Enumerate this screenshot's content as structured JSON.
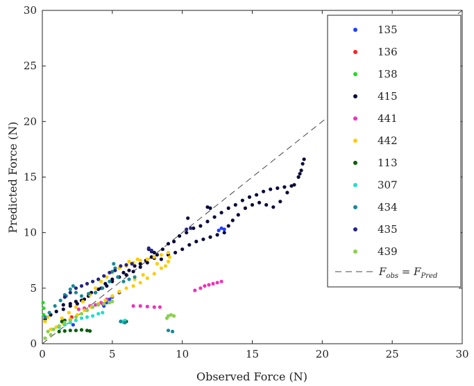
{
  "chart_data": {
    "type": "scatter",
    "xlabel": "Observed Force (N)",
    "ylabel": "Predicted Force (N)",
    "xlim": [
      0,
      30
    ],
    "ylim": [
      0,
      30
    ],
    "xticks": [
      "0",
      "5",
      "10",
      "15",
      "20",
      "25",
      "30"
    ],
    "yticks": [
      "0",
      "5",
      "10",
      "15",
      "20",
      "25",
      "30"
    ],
    "grid": false,
    "legend_position": "top-right",
    "reference_line": {
      "label_main": "F",
      "sub_obs": "obs",
      "sub_pred": "Pred",
      "style": "dashed",
      "color": "#444444"
    },
    "series": [
      {
        "name": "135",
        "color": "#1f3fff",
        "points": [
          [
            4.4,
            3.4
          ],
          [
            4.6,
            3.7
          ],
          [
            4.8,
            4.0
          ],
          [
            5.0,
            4.2
          ],
          [
            5.5,
            4.6
          ],
          [
            12.6,
            10.2
          ],
          [
            12.8,
            10.4
          ],
          [
            13.0,
            10.3
          ],
          [
            2.2,
            1.7
          ]
        ]
      },
      {
        "name": "136",
        "color": "#ff2020",
        "points": [
          [
            2.0,
            2.2
          ],
          [
            2.1,
            2.4
          ]
        ]
      },
      {
        "name": "138",
        "color": "#22dd22",
        "points": [
          [
            0.05,
            3.7
          ],
          [
            0.1,
            3.2
          ],
          [
            0.1,
            2.6
          ]
        ]
      },
      {
        "name": "415",
        "color": "#0c0c3a",
        "points": [
          [
            0.2,
            2.2
          ],
          [
            0.6,
            2.6
          ],
          [
            1,
            2.9
          ],
          [
            1.5,
            3.1
          ],
          [
            2,
            3.4
          ],
          [
            2.5,
            3.6
          ],
          [
            3,
            4.0
          ],
          [
            3.5,
            4.6
          ],
          [
            4,
            4.9
          ],
          [
            4.5,
            5.4
          ],
          [
            5,
            5.8
          ],
          [
            5.5,
            6.0
          ],
          [
            6,
            6.2
          ],
          [
            6.5,
            6.5
          ],
          [
            7,
            6.9
          ],
          [
            7.5,
            7.3
          ],
          [
            8,
            7.7
          ],
          [
            8.5,
            7.6
          ],
          [
            9,
            8.0
          ],
          [
            9.5,
            8.2
          ],
          [
            10,
            8.5
          ],
          [
            10.5,
            8.9
          ],
          [
            11,
            9.2
          ],
          [
            11.5,
            9.4
          ],
          [
            12,
            9.6
          ],
          [
            12.5,
            9.8
          ],
          [
            13,
            10.0
          ],
          [
            13.3,
            10.6
          ],
          [
            13.6,
            11.1
          ],
          [
            14,
            11.6
          ],
          [
            14.5,
            12.2
          ],
          [
            15,
            12.5
          ],
          [
            15.5,
            12.7
          ],
          [
            16,
            12.5
          ],
          [
            16.5,
            12.3
          ],
          [
            17,
            12.8
          ],
          [
            17.5,
            13.6
          ],
          [
            18,
            14.3
          ],
          [
            18.3,
            15.0
          ],
          [
            18.5,
            15.6
          ],
          [
            18.6,
            16.2
          ],
          [
            18.7,
            16.6
          ],
          [
            18.4,
            15.3
          ],
          [
            17.8,
            14.2
          ],
          [
            17.3,
            14.1
          ],
          [
            16.8,
            14.0
          ],
          [
            16.3,
            13.9
          ],
          [
            15.8,
            13.7
          ],
          [
            15.3,
            13.4
          ],
          [
            14.8,
            13.2
          ],
          [
            14.3,
            12.9
          ],
          [
            13.8,
            12.5
          ],
          [
            13.3,
            12.2
          ],
          [
            12.8,
            11.8
          ],
          [
            12.3,
            11.4
          ],
          [
            11.8,
            11.0
          ],
          [
            11.3,
            10.6
          ],
          [
            10.8,
            10.4
          ],
          [
            10.3,
            10.0
          ],
          [
            9.8,
            9.7
          ],
          [
            9.4,
            9.2
          ],
          [
            9.0,
            9.0
          ],
          [
            8.6,
            8.5
          ],
          [
            8.2,
            8.0
          ],
          [
            7.8,
            7.8
          ],
          [
            7.4,
            7.5
          ],
          [
            7.0,
            7.2
          ],
          [
            6.6,
            7.0
          ],
          [
            6.2,
            6.6
          ],
          [
            5.8,
            6.4
          ],
          [
            5.4,
            6.0
          ],
          [
            5.0,
            5.6
          ],
          [
            4.6,
            5.2
          ],
          [
            4.2,
            5.0
          ],
          [
            3.8,
            4.6
          ],
          [
            3.3,
            4.3
          ],
          [
            2.8,
            3.9
          ],
          [
            2.4,
            3.8
          ],
          [
            2.0,
            3.6
          ],
          [
            1.5,
            3.5
          ],
          [
            11.8,
            12.3
          ],
          [
            12.0,
            12.2
          ],
          [
            10.4,
            11.3
          ],
          [
            7.6,
            8.5
          ],
          [
            7.8,
            8.3
          ],
          [
            8.0,
            8.2
          ]
        ]
      },
      {
        "name": "441",
        "color": "#ee33bb",
        "points": [
          [
            3,
            3.2
          ],
          [
            3.4,
            3.4
          ],
          [
            3.8,
            3.5
          ],
          [
            4.2,
            3.7
          ],
          [
            4.6,
            4.0
          ],
          [
            4.3,
            3.6
          ],
          [
            2.6,
            3.1
          ],
          [
            6.5,
            3.4
          ],
          [
            7,
            3.4
          ],
          [
            7.5,
            3.35
          ],
          [
            8,
            3.3
          ],
          [
            8.4,
            3.3
          ],
          [
            10.9,
            4.8
          ],
          [
            11.3,
            5.0
          ],
          [
            11.6,
            5.2
          ],
          [
            11.9,
            5.3
          ],
          [
            12.2,
            5.4
          ],
          [
            12.5,
            5.5
          ],
          [
            12.8,
            5.6
          ]
        ]
      },
      {
        "name": "442",
        "color": "#ffcc00",
        "points": [
          [
            0.6,
            1.3
          ],
          [
            1,
            1.5
          ],
          [
            1.5,
            1.8
          ],
          [
            2,
            2.2
          ],
          [
            2.5,
            2.6
          ],
          [
            3,
            3.0
          ],
          [
            3.5,
            3.3
          ],
          [
            4,
            3.6
          ],
          [
            4.5,
            3.9
          ],
          [
            5,
            4.3
          ],
          [
            5.5,
            4.7
          ],
          [
            6,
            5.0
          ],
          [
            6.5,
            5.2
          ],
          [
            7,
            5.5
          ],
          [
            7.5,
            5.9
          ],
          [
            8,
            6.3
          ],
          [
            8.5,
            6.8
          ],
          [
            9,
            7.4
          ],
          [
            9.1,
            7.8
          ],
          [
            9.0,
            8.2
          ],
          [
            8.5,
            8.0
          ],
          [
            8,
            7.8
          ],
          [
            7.5,
            7.6
          ],
          [
            7,
            7.5
          ],
          [
            6.5,
            7.3
          ],
          [
            6,
            7.0
          ],
          [
            5.5,
            6.8
          ],
          [
            5,
            6.4
          ],
          [
            4.6,
            6.0
          ],
          [
            4.2,
            5.6
          ],
          [
            3.8,
            5.0
          ],
          [
            3.4,
            4.4
          ],
          [
            2.9,
            3.8
          ],
          [
            2.4,
            3.3
          ],
          [
            1.9,
            2.8
          ],
          [
            1.4,
            2.3
          ],
          [
            0.4,
            2.4
          ],
          [
            0.2,
            2.0
          ],
          [
            6.2,
            7.4
          ],
          [
            6.8,
            7.6
          ],
          [
            5.8,
            5.6
          ],
          [
            6.6,
            5.8
          ],
          [
            7.2,
            6.2
          ],
          [
            8.8,
            7.0
          ],
          [
            8.2,
            7.2
          ]
        ]
      },
      {
        "name": "113",
        "color": "#0b5e0b",
        "points": [
          [
            1.2,
            1.1
          ],
          [
            1.6,
            1.15
          ],
          [
            2.0,
            1.2
          ],
          [
            2.4,
            1.2
          ],
          [
            2.8,
            1.25
          ],
          [
            3.2,
            1.2
          ],
          [
            3.4,
            1.15
          ],
          [
            1.4,
            2.0
          ],
          [
            1.6,
            2.1
          ],
          [
            5.6,
            2.0
          ],
          [
            5.8,
            1.95
          ],
          [
            6.0,
            2.0
          ]
        ]
      },
      {
        "name": "307",
        "color": "#22ddcc",
        "points": [
          [
            0.8,
            1.3
          ],
          [
            1.2,
            1.5
          ],
          [
            1.6,
            1.7
          ],
          [
            2.0,
            1.9
          ],
          [
            2.4,
            2.1
          ],
          [
            2.8,
            2.3
          ],
          [
            3.2,
            2.4
          ],
          [
            3.6,
            2.5
          ],
          [
            4.0,
            2.7
          ],
          [
            4.3,
            2.8
          ],
          [
            5.7,
            2.0
          ],
          [
            5.9,
            2.1
          ]
        ]
      },
      {
        "name": "434",
        "color": "#1a8a96",
        "points": [
          [
            0.2,
            2.4
          ],
          [
            0.5,
            2.8
          ],
          [
            0.9,
            3.4
          ],
          [
            1.3,
            3.9
          ],
          [
            1.7,
            4.3
          ],
          [
            2.0,
            4.9
          ],
          [
            2.2,
            5.2
          ],
          [
            2.4,
            4.6
          ],
          [
            2.8,
            4.3
          ],
          [
            3.3,
            4.5
          ],
          [
            3.8,
            4.6
          ],
          [
            4.3,
            5.0
          ],
          [
            4.8,
            5.6
          ],
          [
            5.0,
            6.5
          ],
          [
            5.1,
            7.2
          ],
          [
            5.2,
            6.8
          ],
          [
            5.4,
            6.0
          ],
          [
            5.8,
            5.6
          ],
          [
            6.2,
            5.8
          ],
          [
            6.6,
            6.0
          ],
          [
            9.0,
            1.2
          ],
          [
            9.3,
            1.1
          ],
          [
            5.6,
            2.0
          ],
          [
            5.9,
            1.9
          ],
          [
            1.6,
            4.4
          ]
        ]
      },
      {
        "name": "435",
        "color": "#252580",
        "points": [
          [
            2.4,
            5.0
          ],
          [
            2.8,
            5.2
          ],
          [
            3.2,
            5.4
          ],
          [
            3.6,
            5.6
          ],
          [
            4.0,
            5.8
          ],
          [
            4.4,
            6.1
          ],
          [
            4.8,
            6.4
          ],
          [
            5.2,
            6.6
          ],
          [
            5.6,
            7.0
          ],
          [
            6.0,
            7.1
          ],
          [
            6.4,
            7.2
          ],
          [
            1.6,
            4.2
          ],
          [
            2.0,
            4.6
          ],
          [
            10.3,
            10.3
          ],
          [
            10.6,
            10.4
          ],
          [
            7.6,
            8.6
          ],
          [
            7.8,
            8.4
          ]
        ]
      },
      {
        "name": "439",
        "color": "#8ccf50",
        "points": [
          [
            0.4,
            1.1
          ],
          [
            0.8,
            1.3
          ],
          [
            1.2,
            1.6
          ],
          [
            1.6,
            1.9
          ],
          [
            2.0,
            2.1
          ],
          [
            2.4,
            2.4
          ],
          [
            2.8,
            2.7
          ],
          [
            3.2,
            3.0
          ],
          [
            3.6,
            3.3
          ],
          [
            4.0,
            3.5
          ],
          [
            4.4,
            3.6
          ],
          [
            4.8,
            3.7
          ],
          [
            5.0,
            3.8
          ],
          [
            9.0,
            2.5
          ],
          [
            9.2,
            2.6
          ],
          [
            9.4,
            2.5
          ],
          [
            8.9,
            2.3
          ],
          [
            0.2,
            0.5
          ],
          [
            0.6,
            0.8
          ]
        ]
      }
    ]
  }
}
